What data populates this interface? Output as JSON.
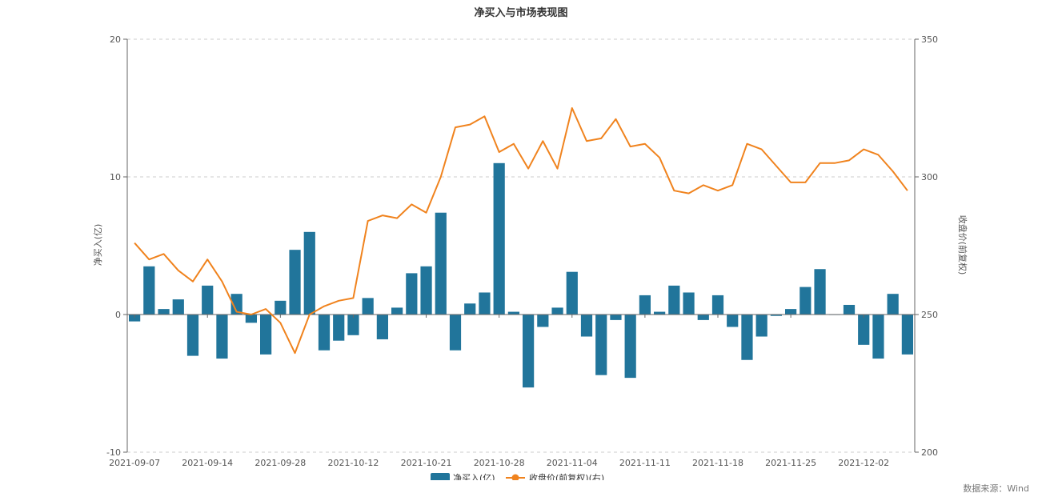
{
  "chart_data": {
    "type": "bar",
    "title": "净买入与市场表现图",
    "ylabel": "净买入(亿)",
    "y2label": "收盘价(前复权)",
    "ylim": [
      -10,
      20
    ],
    "yticks": [
      -10,
      0,
      10,
      20
    ],
    "y2lim": [
      200,
      350
    ],
    "y2ticks": [
      200,
      250,
      300,
      350
    ],
    "xtick_labels": [
      "2021-09-07",
      "2021-09-14",
      "2021-09-28",
      "2021-10-12",
      "2021-10-21",
      "2021-10-28",
      "2021-11-04",
      "2021-11-11",
      "2021-11-18",
      "2021-11-25",
      "2021-12-02"
    ],
    "xtick_index": [
      0,
      5,
      10,
      15,
      20,
      25,
      30,
      35,
      40,
      45,
      50
    ],
    "grid": true,
    "legend_position": "bottom-center",
    "series": [
      {
        "name": "净买入(亿)",
        "type": "bar",
        "axis": "left",
        "color": "#21759b",
        "values": [
          -0.5,
          3.5,
          0.4,
          1.1,
          -3.0,
          2.1,
          -3.2,
          1.5,
          -0.6,
          -2.9,
          1.0,
          4.7,
          6.0,
          -2.6,
          -1.9,
          -1.5,
          1.2,
          -1.8,
          0.5,
          3.0,
          3.5,
          7.4,
          -2.6,
          0.8,
          1.6,
          11.0,
          0.2,
          -5.3,
          -0.9,
          0.5,
          3.1,
          -1.6,
          -4.4,
          -0.4,
          -4.6,
          1.4,
          0.2,
          2.1,
          1.6,
          -0.4,
          1.4,
          -0.9,
          -3.3,
          -1.6,
          -0.1,
          0.4,
          2.0,
          3.3,
          0.0,
          0.7,
          -2.2,
          -3.2,
          1.5,
          -2.9
        ]
      },
      {
        "name": "收盘价(前复权)(右)",
        "type": "line",
        "axis": "right",
        "color": "#f0831e",
        "values": [
          276,
          270,
          272,
          266,
          262,
          270,
          262,
          251,
          250,
          252,
          247,
          236,
          250,
          253,
          255,
          256,
          284,
          286,
          285,
          290,
          287,
          300,
          318,
          319,
          322,
          309,
          312,
          303,
          313,
          303,
          325,
          313,
          314,
          321,
          311,
          312,
          307,
          295,
          294,
          297,
          295,
          297,
          312,
          310,
          304,
          298,
          298,
          305,
          305,
          306,
          310,
          308,
          302,
          295
        ]
      }
    ]
  },
  "source_text": "数据来源：Wind",
  "colors": {
    "grid": "#cccccc",
    "axis": "#666666"
  }
}
